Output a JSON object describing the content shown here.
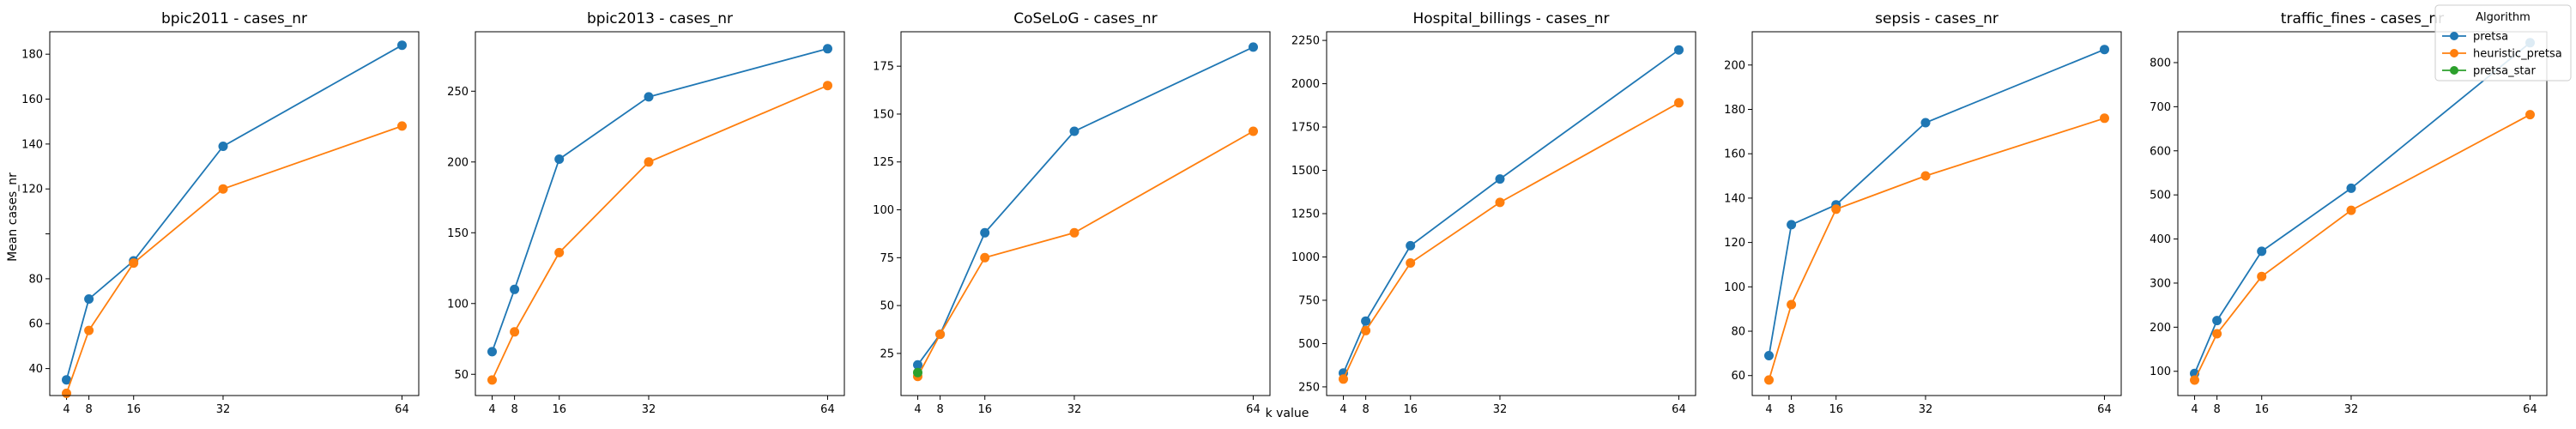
{
  "figure": {
    "xlabel": "k value",
    "ylabel": "Mean cases_nr"
  },
  "legend": {
    "title": "Algorithm",
    "placement": "top-right",
    "entries": [
      "pretsa",
      "heuristic_pretsa",
      "pretsa_star"
    ]
  },
  "colors": {
    "pretsa": "#1f77b4",
    "heuristic_pretsa": "#ff7f0e",
    "pretsa_star": "#2ca02c"
  },
  "chart_data": [
    {
      "type": "line",
      "title": "bpic2011 - cases_nr",
      "xticks": [
        4,
        8,
        16,
        32,
        64
      ],
      "xlim": [
        1,
        67
      ],
      "ylim": [
        28,
        190
      ],
      "yticks": [
        40,
        60,
        80,
        100,
        120,
        140,
        160,
        180
      ],
      "ytick_labels": [
        "40",
        "60",
        "80",
        "",
        "120",
        "140",
        "160",
        "180"
      ],
      "grid": false,
      "series": [
        {
          "name": "pretsa",
          "x": [
            4,
            8,
            16,
            32,
            64
          ],
          "values": [
            35,
            71,
            88,
            139,
            184
          ]
        },
        {
          "name": "heuristic_pretsa",
          "x": [
            4,
            8,
            16,
            32,
            64
          ],
          "values": [
            29,
            57,
            87,
            120,
            148
          ]
        }
      ]
    },
    {
      "type": "line",
      "title": "bpic2013 - cases_nr",
      "xticks": [
        4,
        8,
        16,
        32,
        64
      ],
      "xlim": [
        1,
        67
      ],
      "ylim": [
        35,
        292
      ],
      "yticks": [
        50,
        100,
        150,
        200,
        250
      ],
      "ytick_labels": [
        "50",
        "100",
        "150",
        "200",
        "250"
      ],
      "grid": false,
      "series": [
        {
          "name": "pretsa",
          "x": [
            4,
            8,
            16,
            32,
            64
          ],
          "values": [
            66,
            110,
            202,
            246,
            280
          ]
        },
        {
          "name": "heuristic_pretsa",
          "x": [
            4,
            8,
            16,
            32,
            64
          ],
          "values": [
            46,
            80,
            136,
            200,
            254
          ]
        }
      ]
    },
    {
      "type": "line",
      "title": "CoSeLoG - cases_nr",
      "xticks": [
        4,
        8,
        16,
        32,
        64
      ],
      "xlim": [
        1,
        67
      ],
      "ylim": [
        3,
        193
      ],
      "yticks": [
        25,
        50,
        75,
        100,
        125,
        150,
        175
      ],
      "ytick_labels": [
        "25",
        "50",
        "75",
        "100",
        "125",
        "150",
        "175"
      ],
      "grid": false,
      "series": [
        {
          "name": "pretsa",
          "x": [
            4,
            8,
            16,
            32,
            64
          ],
          "values": [
            19,
            35,
            88,
            141,
            185
          ]
        },
        {
          "name": "heuristic_pretsa",
          "x": [
            4,
            8,
            16,
            32,
            64
          ],
          "values": [
            13,
            35,
            75,
            88,
            141
          ]
        },
        {
          "name": "pretsa_star",
          "x": [
            4
          ],
          "values": [
            15
          ]
        }
      ]
    },
    {
      "type": "line",
      "title": "Hospital_billings - cases_nr",
      "xticks": [
        4,
        8,
        16,
        32,
        64
      ],
      "xlim": [
        1,
        67
      ],
      "ylim": [
        200,
        2300
      ],
      "yticks": [
        250,
        500,
        750,
        1000,
        1250,
        1500,
        1750,
        2000,
        2250
      ],
      "ytick_labels": [
        "250",
        "500",
        "750",
        "1000",
        "1250",
        "1500",
        "1750",
        "2000",
        "2250"
      ],
      "grid": false,
      "series": [
        {
          "name": "pretsa",
          "x": [
            4,
            8,
            16,
            32,
            64
          ],
          "values": [
            330,
            630,
            1065,
            1450,
            2195
          ]
        },
        {
          "name": "heuristic_pretsa",
          "x": [
            4,
            8,
            16,
            32,
            64
          ],
          "values": [
            295,
            575,
            965,
            1315,
            1890
          ]
        }
      ]
    },
    {
      "type": "line",
      "title": "sepsis - cases_nr",
      "xticks": [
        4,
        8,
        16,
        32,
        64
      ],
      "xlim": [
        1,
        67
      ],
      "ylim": [
        51,
        215
      ],
      "yticks": [
        60,
        80,
        100,
        120,
        140,
        160,
        180,
        200
      ],
      "ytick_labels": [
        "60",
        "80",
        "100",
        "120",
        "140",
        "160",
        "180",
        "200"
      ],
      "grid": false,
      "series": [
        {
          "name": "pretsa",
          "x": [
            4,
            8,
            16,
            32,
            64
          ],
          "values": [
            69,
            128,
            137,
            174,
            207
          ]
        },
        {
          "name": "heuristic_pretsa",
          "x": [
            4,
            8,
            16,
            32,
            64
          ],
          "values": [
            58,
            92,
            135,
            150,
            176
          ]
        }
      ]
    },
    {
      "type": "line",
      "title": "traffic_fines - cases_nr",
      "xticks": [
        4,
        8,
        16,
        32,
        64
      ],
      "xlim": [
        1,
        67
      ],
      "ylim": [
        45,
        870
      ],
      "yticks": [
        100,
        200,
        300,
        400,
        500,
        600,
        700,
        800
      ],
      "ytick_labels": [
        "100",
        "200",
        "300",
        "400",
        "500",
        "600",
        "700",
        "800"
      ],
      "grid": false,
      "series": [
        {
          "name": "pretsa",
          "x": [
            4,
            8,
            16,
            32,
            64
          ],
          "values": [
            95,
            215,
            372,
            515,
            845
          ]
        },
        {
          "name": "heuristic_pretsa",
          "x": [
            4,
            8,
            16,
            32,
            64
          ],
          "values": [
            80,
            185,
            315,
            465,
            682
          ]
        }
      ]
    }
  ]
}
